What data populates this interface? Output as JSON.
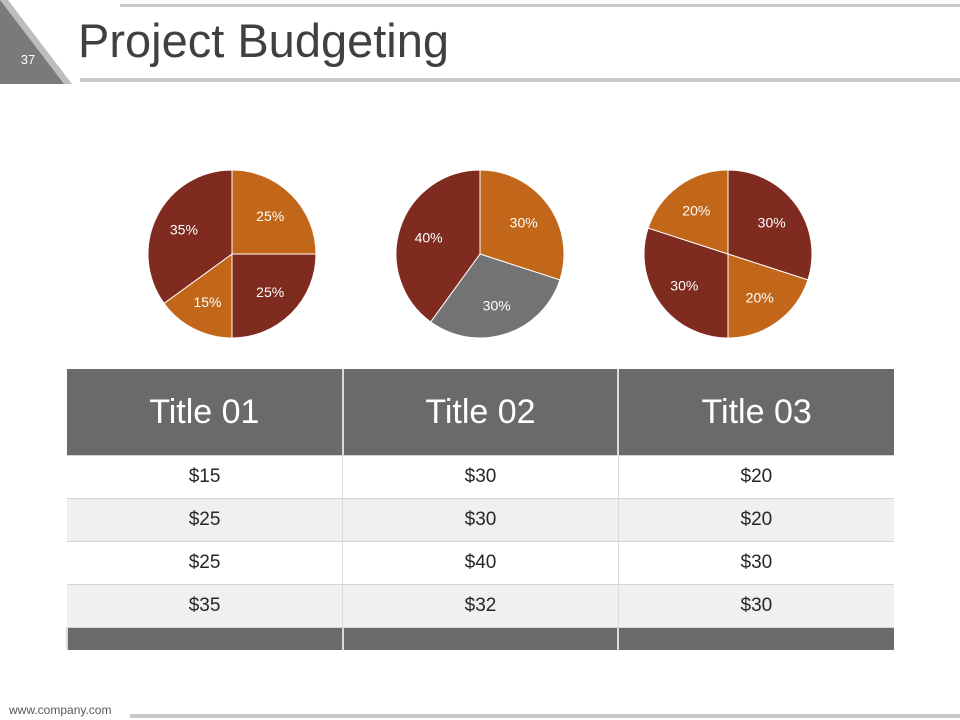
{
  "slide": {
    "page_number": "37",
    "title": "Project Budgeting",
    "footer_url": "www.company.com"
  },
  "colors": {
    "dark_red": "#7f2b20",
    "orange": "#c26619",
    "gray": "#737373",
    "header_gray": "#6a6a6a"
  },
  "chart_data": [
    {
      "type": "pie",
      "start_angle_deg": 0,
      "values": [
        25,
        25,
        15,
        35
      ],
      "labels": [
        "25%",
        "25%",
        "15%",
        "35%"
      ],
      "colors": [
        "#c26619",
        "#7f2b20",
        "#c26619",
        "#7f2b20"
      ]
    },
    {
      "type": "pie",
      "start_angle_deg": 0,
      "values": [
        30,
        30,
        40
      ],
      "labels": [
        "30%",
        "30%",
        "40%"
      ],
      "colors": [
        "#c26619",
        "#737373",
        "#7f2b20"
      ]
    },
    {
      "type": "pie",
      "start_angle_deg": 0,
      "values": [
        30,
        20,
        30,
        20
      ],
      "labels": [
        "30%",
        "20%",
        "30%",
        "20%"
      ],
      "colors": [
        "#7f2b20",
        "#c26619",
        "#7f2b20",
        "#c26619"
      ]
    }
  ],
  "table": {
    "headers": [
      "Title 01",
      "Title 02",
      "Title 03"
    ],
    "rows": [
      [
        "$15",
        "$30",
        "$20"
      ],
      [
        "$25",
        "$30",
        "$20"
      ],
      [
        "$25",
        "$40",
        "$30"
      ],
      [
        "$35",
        "$32",
        "$30"
      ]
    ]
  }
}
